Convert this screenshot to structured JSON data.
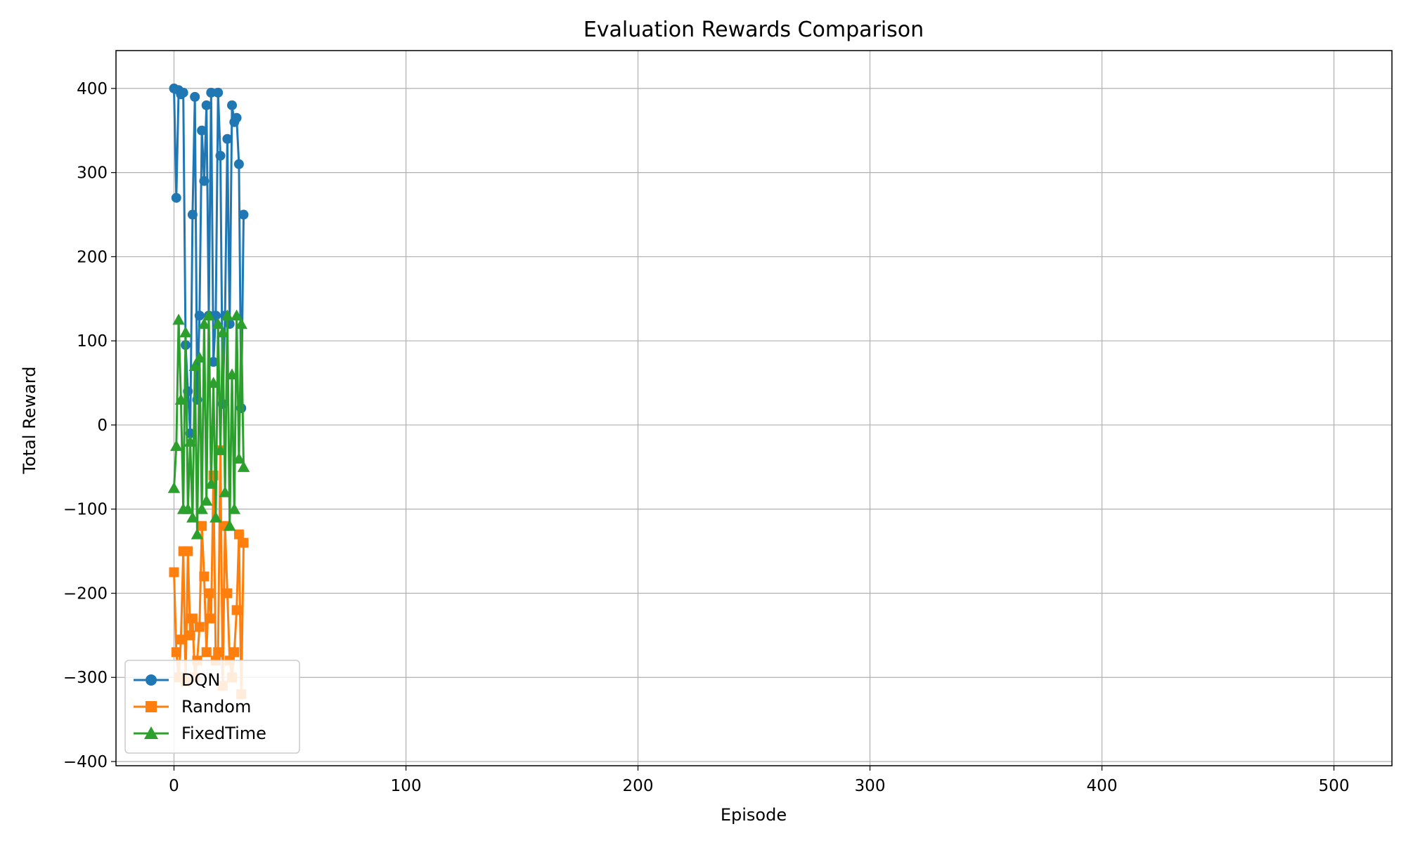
{
  "chart_data": {
    "type": "line",
    "title": "Evaluation Rewards Comparison",
    "xlabel": "Episode",
    "ylabel": "Total Reward",
    "xlim": [
      -25,
      525
    ],
    "ylim": [
      -405,
      445
    ],
    "xticks": [
      0,
      100,
      200,
      300,
      400,
      500
    ],
    "yticks": [
      -400,
      -300,
      -200,
      -100,
      0,
      100,
      200,
      300,
      400
    ],
    "grid": true,
    "legend_position": "lower-left",
    "series": [
      {
        "name": "DQN",
        "color": "#1f77b4",
        "marker": "circle",
        "x": [
          0,
          1,
          2,
          3,
          4,
          5,
          6,
          7,
          8,
          9,
          10,
          11,
          12,
          13,
          14,
          15,
          16,
          17,
          18,
          19,
          20,
          21,
          22,
          23,
          24,
          25,
          26,
          27,
          28,
          29,
          30
        ],
        "y": [
          400,
          270,
          398,
          393,
          395,
          95,
          40,
          -10,
          250,
          390,
          30,
          130,
          350,
          290,
          380,
          130,
          395,
          75,
          130,
          395,
          320,
          25,
          130,
          340,
          120,
          380,
          360,
          365,
          310,
          20,
          250
        ]
      },
      {
        "name": "Random",
        "color": "#ff7f0e",
        "marker": "square",
        "x": [
          0,
          1,
          2,
          3,
          4,
          5,
          6,
          7,
          8,
          9,
          10,
          11,
          12,
          13,
          14,
          15,
          16,
          17,
          18,
          19,
          20,
          21,
          22,
          23,
          24,
          25,
          26,
          27,
          28,
          29,
          30
        ],
        "y": [
          -175,
          -270,
          -300,
          -255,
          -150,
          -305,
          -150,
          -250,
          -230,
          -300,
          -280,
          -240,
          -120,
          -180,
          -270,
          -200,
          -230,
          -60,
          -280,
          -270,
          -30,
          -310,
          -120,
          -200,
          -280,
          -300,
          -270,
          -220,
          -130,
          -320,
          -140
        ]
      },
      {
        "name": "FixedTime",
        "color": "#2ca02c",
        "marker": "triangle",
        "x": [
          0,
          1,
          2,
          3,
          4,
          5,
          6,
          7,
          8,
          9,
          10,
          11,
          12,
          13,
          14,
          15,
          16,
          17,
          18,
          19,
          20,
          21,
          22,
          23,
          24,
          25,
          26,
          27,
          28,
          29,
          30
        ],
        "y": [
          -75,
          -25,
          125,
          30,
          -100,
          110,
          -100,
          -20,
          -110,
          70,
          -130,
          80,
          -100,
          120,
          -90,
          130,
          -70,
          50,
          -110,
          120,
          -30,
          110,
          -80,
          130,
          -120,
          60,
          -100,
          130,
          -40,
          120,
          -50
        ]
      }
    ]
  }
}
